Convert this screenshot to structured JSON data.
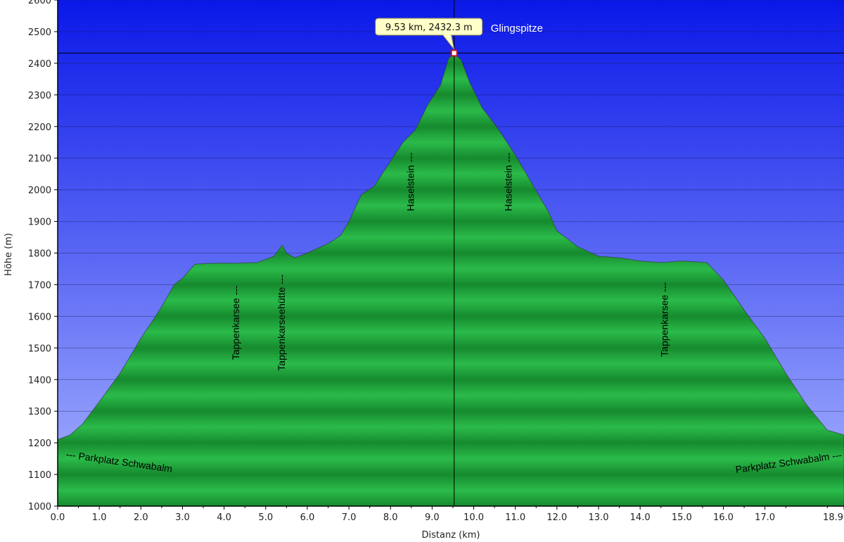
{
  "chart_data": {
    "type": "area",
    "xlabel": "Distanz   (km)",
    "ylabel": "Höhe (m)",
    "xlim": [
      0,
      18.9
    ],
    "ylim": [
      1000,
      2600
    ],
    "x_ticks": [
      "0.0",
      "1.0",
      "2.0",
      "3.0",
      "4.0",
      "5.0",
      "6.0",
      "7.0",
      "8.0",
      "9.0",
      "10.0",
      "11.0",
      "12.0",
      "13.0",
      "14.0",
      "15.0",
      "16.0",
      "17.0",
      "18.9"
    ],
    "x_tick_values": [
      0,
      1,
      2,
      3,
      4,
      5,
      6,
      7,
      8,
      9,
      10,
      11,
      12,
      13,
      14,
      15,
      16,
      17,
      18.9
    ],
    "y_ticks": [
      "1000",
      "1100",
      "1200",
      "1300",
      "1400",
      "1500",
      "1600",
      "1700",
      "1800",
      "1900",
      "2000",
      "2100",
      "2200",
      "2300",
      "2400",
      "2500",
      "2600"
    ],
    "y_tick_values": [
      1000,
      1100,
      1200,
      1300,
      1400,
      1500,
      1600,
      1700,
      1800,
      1900,
      2000,
      2100,
      2200,
      2300,
      2400,
      2500,
      2600
    ],
    "series": [
      {
        "x": [
          0,
          0.3,
          0.6,
          1.0,
          1.5,
          2.0,
          2.5,
          2.8,
          3.0,
          3.3,
          3.8,
          4.3,
          4.8,
          5.2,
          5.4,
          5.5,
          5.7,
          6.0,
          6.5,
          6.8,
          7.0,
          7.3,
          7.6,
          8.0,
          8.3,
          8.6,
          8.9,
          9.2,
          9.4,
          9.53,
          9.7,
          9.9,
          10.2,
          10.6,
          11.0,
          11.4,
          11.8,
          12.0,
          12.5,
          13.0,
          13.5,
          14.0,
          14.5,
          15.0,
          15.6,
          16.0,
          16.5,
          17.0,
          17.5,
          18.0,
          18.5,
          18.9
        ],
        "y": [
          1210,
          1225,
          1260,
          1330,
          1420,
          1530,
          1630,
          1700,
          1720,
          1765,
          1768,
          1768,
          1770,
          1790,
          1825,
          1800,
          1785,
          1800,
          1830,
          1855,
          1900,
          1985,
          2010,
          2090,
          2150,
          2190,
          2270,
          2330,
          2415,
          2432.3,
          2410,
          2340,
          2260,
          2190,
          2110,
          2020,
          1930,
          1870,
          1820,
          1790,
          1785,
          1775,
          1770,
          1775,
          1770,
          1715,
          1620,
          1530,
          1420,
          1320,
          1240,
          1225
        ]
      }
    ],
    "marker": {
      "x": 9.53,
      "y": 2432.3,
      "tooltip": "9.53 km, 2432.3 m",
      "label": "Glingspitze"
    },
    "annotations": [
      {
        "text": "--- Parkplatz Schwabalm",
        "x": 0.2,
        "y": 1162,
        "rotate": 8,
        "anchor": "start"
      },
      {
        "text": "Tappenkarsee ---",
        "x": 4.3,
        "y": 1580,
        "rotate": -90,
        "anchor": "middle"
      },
      {
        "text": "Tappenkarseehütte ---",
        "x": 5.4,
        "y": 1580,
        "rotate": -90,
        "anchor": "middle"
      },
      {
        "text": "Haselstein ---",
        "x": 8.5,
        "y": 2025,
        "rotate": -90,
        "anchor": "middle"
      },
      {
        "text": "Haselstein ---",
        "x": 10.85,
        "y": 2025,
        "rotate": -90,
        "anchor": "middle"
      },
      {
        "text": "Tappenkarsee ---",
        "x": 14.6,
        "y": 1590,
        "rotate": -90,
        "anchor": "middle"
      },
      {
        "text": "Parkplatz Schwabalm ---",
        "x": 18.85,
        "y": 1160,
        "rotate": -8,
        "anchor": "end"
      }
    ],
    "grid": "horizontal",
    "colors": {
      "fill": "#1fa43c",
      "sky_top": "#0a18e8",
      "sky_bottom": "#a8b4ff",
      "tooltip_bg": "#ffffc8"
    }
  }
}
